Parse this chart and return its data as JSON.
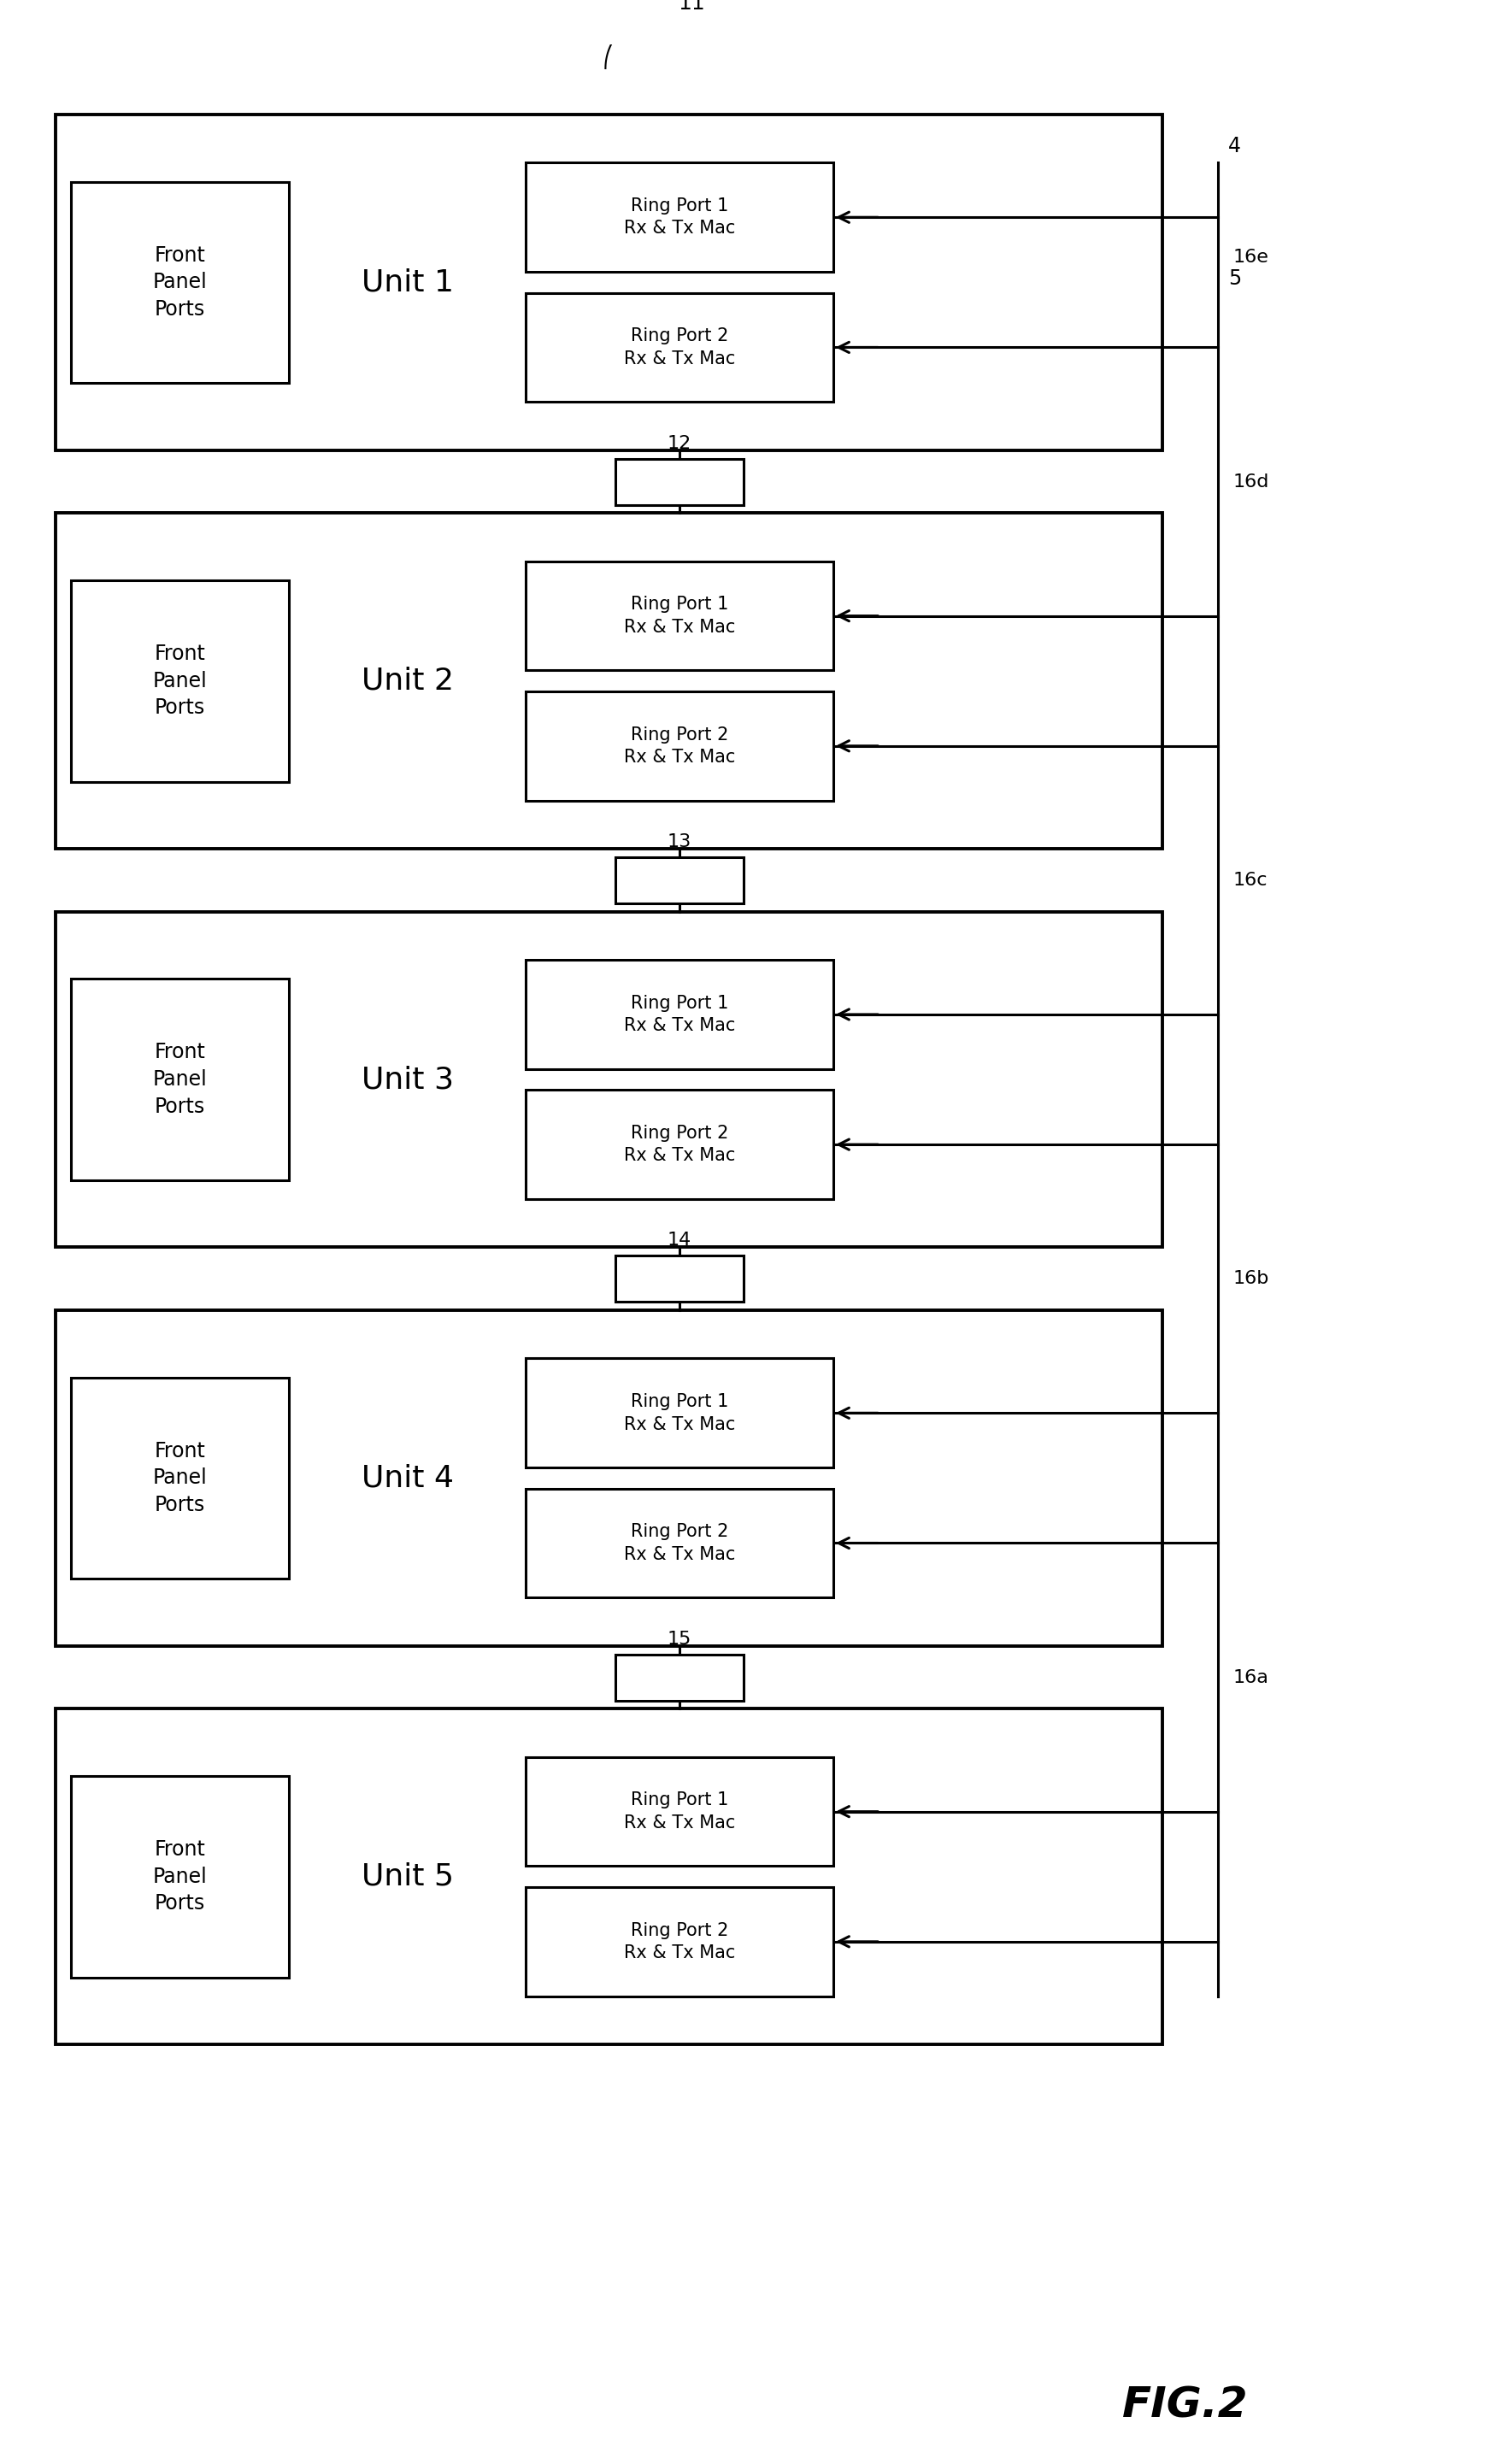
{
  "units": [
    {
      "name": "Unit 1",
      "inter_label": "12"
    },
    {
      "name": "Unit 2",
      "inter_label": "13"
    },
    {
      "name": "Unit 3",
      "inter_label": "14"
    },
    {
      "name": "Unit 4",
      "inter_label": "15"
    },
    {
      "name": "Unit 5",
      "inter_label": null
    }
  ],
  "label_11": "11",
  "label_4": "4",
  "label_5": "5",
  "label_16e": "16e",
  "label_16d": "16d",
  "label_16c": "16c",
  "label_16b": "16b",
  "label_16a": "16a",
  "fig_label": "FIG.2",
  "ring_port_1": "Ring Port 1\nRx & Tx Mac",
  "ring_port_2": "Ring Port 2\nRx & Tx Mac",
  "front_panel": "Front\nPanel\nPorts",
  "background_color": "#ffffff"
}
